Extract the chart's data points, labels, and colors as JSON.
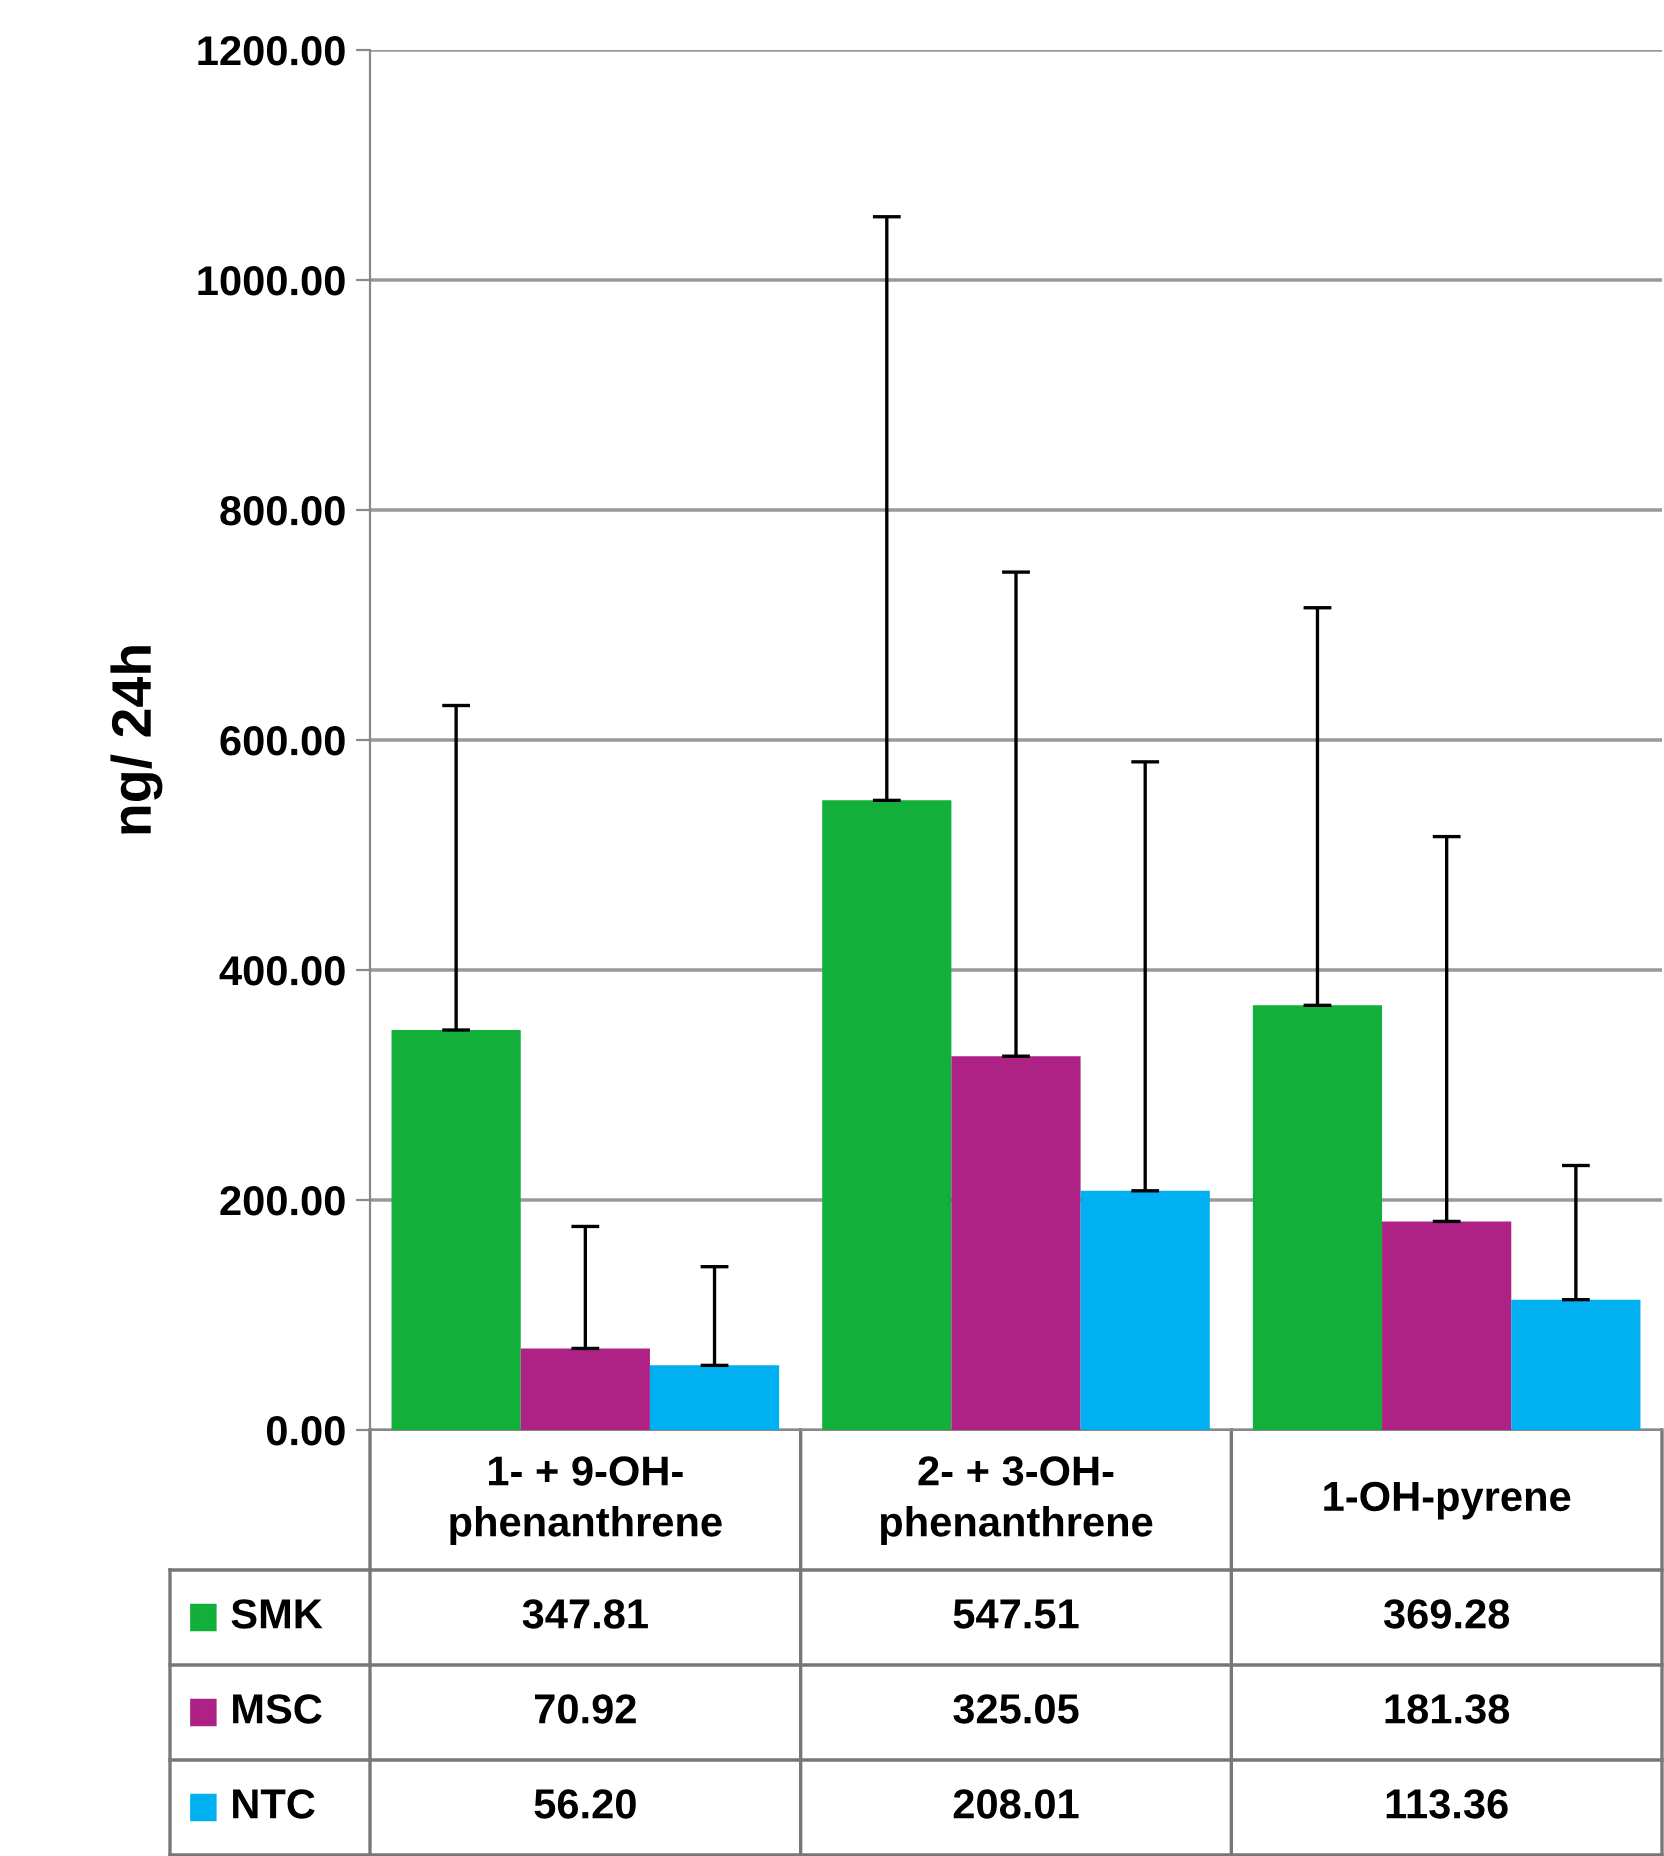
{
  "chart_data": {
    "type": "bar",
    "ylabel": "ng/ 24h",
    "categories": [
      "1- + 9-OH-\nphenanthrene",
      "2- + 3-OH-\nphenanthrene",
      "1-OH-pyrene"
    ],
    "series": [
      {
        "name": "SMK",
        "color": "#12b03a",
        "values": [
          347.81,
          547.51,
          369.28
        ],
        "value_labels": [
          "347.81",
          "547.51",
          "369.28"
        ],
        "errors": [
          [
            347.81,
            630
          ],
          [
            547.51,
            1055
          ],
          [
            369.28,
            715
          ]
        ]
      },
      {
        "name": "MSC",
        "color": "#ae2185",
        "values": [
          70.92,
          325.05,
          181.38
        ],
        "value_labels": [
          "70.92",
          "325.05",
          "181.38"
        ],
        "errors": [
          [
            70.92,
            177
          ],
          [
            325.05,
            746
          ],
          [
            181.38,
            516
          ]
        ]
      },
      {
        "name": "NTC",
        "color": "#00b0f0",
        "values": [
          56.2,
          208.01,
          113.36
        ],
        "value_labels": [
          "56.20",
          "208.01",
          "113.36"
        ],
        "errors": [
          [
            56.2,
            142
          ],
          [
            208.01,
            581
          ],
          [
            113.36,
            230
          ]
        ]
      }
    ],
    "ylim": [
      0,
      1200
    ],
    "yticks": [
      {
        "value": 0,
        "label": "0.00"
      },
      {
        "value": 200,
        "label": "200.00"
      },
      {
        "value": 400,
        "label": "400.00"
      },
      {
        "value": 600,
        "label": "600.00"
      },
      {
        "value": 800,
        "label": "800.00"
      },
      {
        "value": 1000,
        "label": "1000.00"
      },
      {
        "value": 1200,
        "label": "1200.00"
      }
    ],
    "grid": "y",
    "legend": "bottom"
  }
}
